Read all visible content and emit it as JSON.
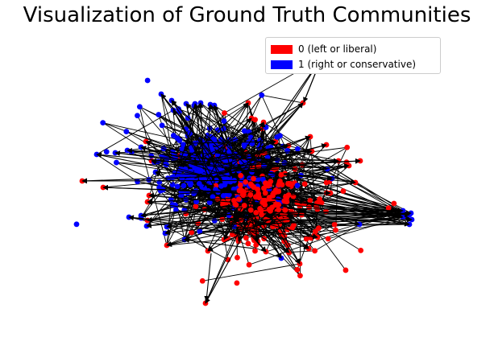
{
  "title": "Visualization of Ground Truth Communities",
  "legend": {
    "entries": [
      {
        "label": "0 (left or liberal)",
        "color": "#ff0000"
      },
      {
        "label": "1 (right or conservative)",
        "color": "#0000ff"
      }
    ]
  },
  "colors": {
    "edge": "#000000",
    "community_0": "#ff0000",
    "community_1": "#0000ff"
  }
}
